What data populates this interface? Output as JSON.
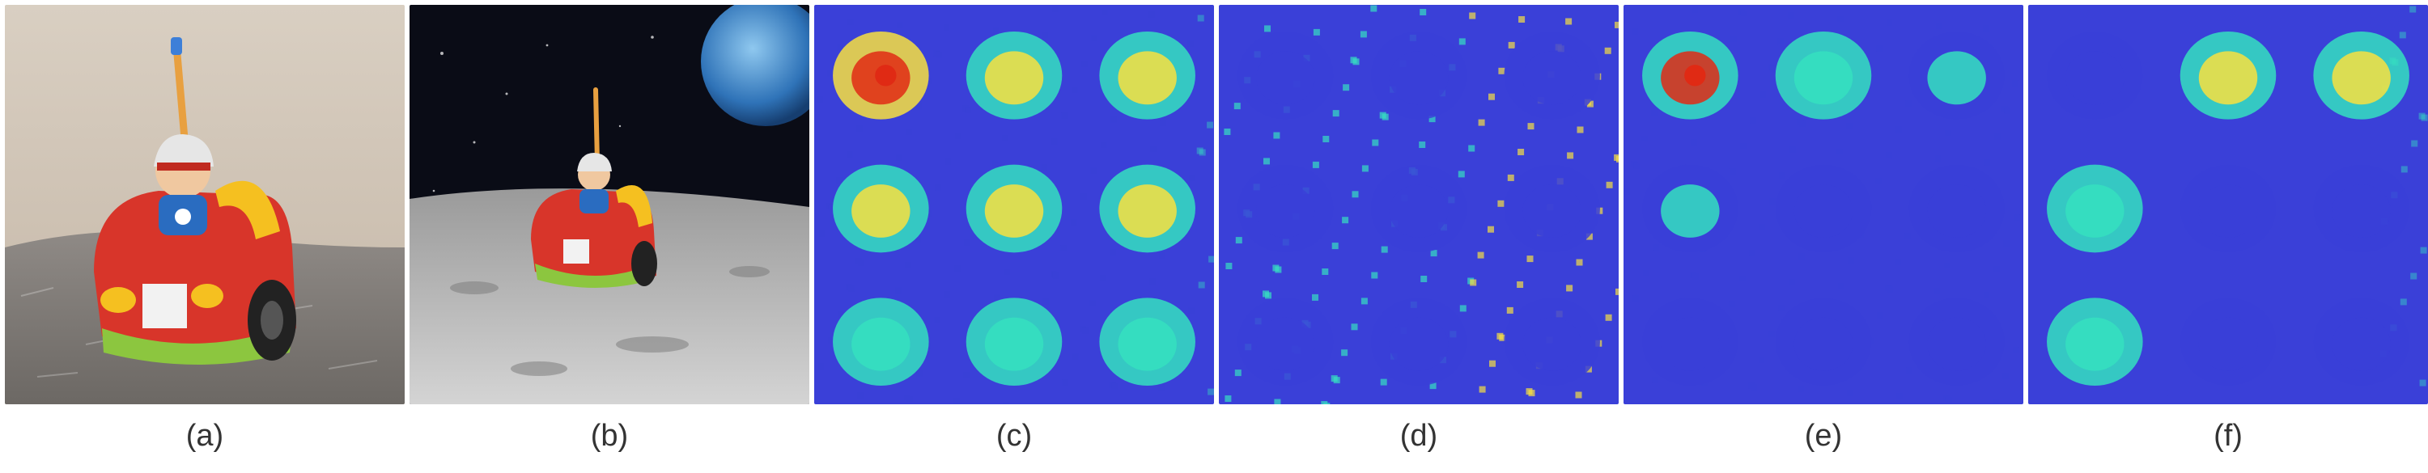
{
  "figure": {
    "panels": [
      {
        "id": "a",
        "caption": "(a)",
        "content": "photo-toy-car-on-carpet"
      },
      {
        "id": "b",
        "caption": "(b)",
        "content": "photo-toy-car-on-moon"
      },
      {
        "id": "c",
        "caption": "(c)",
        "content": "attention-heatmap-grid"
      },
      {
        "id": "d",
        "caption": "(d)",
        "content": "attention-heatmap-grid"
      },
      {
        "id": "e",
        "caption": "(e)",
        "content": "attention-heatmap-grid"
      },
      {
        "id": "f",
        "caption": "(f)",
        "content": "attention-heatmap-grid"
      }
    ]
  },
  "colors": {
    "heat_low": "#3a40d8",
    "heat_mid": "#35e0c0",
    "heat_high": "#f8e040",
    "heat_peak": "#e02a14"
  },
  "grids": {
    "c": {
      "intensity": [
        [
          0.9,
          0.75,
          0.7
        ],
        [
          0.6,
          0.72,
          0.6
        ],
        [
          0.55,
          0.58,
          0.5
        ]
      ],
      "background": 0.15
    },
    "d": {
      "intensity": [
        [
          0.15,
          0.1,
          0.1
        ],
        [
          0.08,
          0.1,
          0.12
        ],
        [
          0.1,
          0.08,
          0.1
        ]
      ],
      "background": 0.55
    },
    "e": {
      "intensity": [
        [
          0.85,
          0.55,
          0.45
        ],
        [
          0.35,
          0.15,
          0.15
        ],
        [
          0.3,
          0.12,
          0.12
        ]
      ],
      "background": 0.05
    },
    "f": {
      "intensity": [
        [
          0.2,
          0.75,
          0.6
        ],
        [
          0.55,
          0.25,
          0.22
        ],
        [
          0.5,
          0.25,
          0.22
        ]
      ],
      "background": 0.18
    }
  }
}
